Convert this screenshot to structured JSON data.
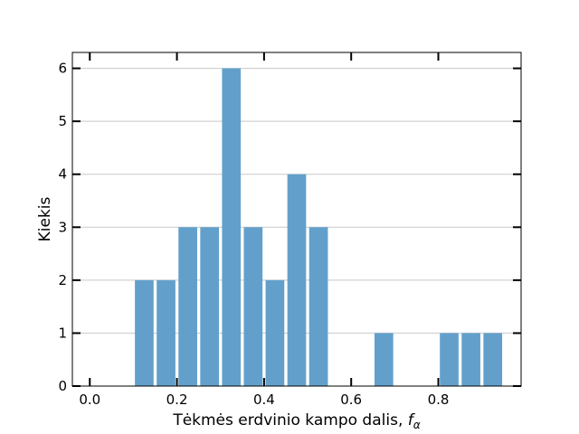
{
  "chart_data": {
    "type": "bar",
    "xlabel": "Tėkmės erdvinio kampo dalis, ",
    "xlabel_symbol": "f",
    "xlabel_subscript": "α",
    "ylabel": "Kiekis",
    "xlim": [
      -0.04,
      0.99
    ],
    "ylim": [
      0,
      6.3
    ],
    "x_ticks": [
      "0.0",
      "0.2",
      "0.4",
      "0.6",
      "0.8"
    ],
    "y_ticks": [
      "0",
      "1",
      "2",
      "3",
      "4",
      "5",
      "6"
    ],
    "grid": "horizontal",
    "bar_color": "#62a0cb",
    "bin_width": 0.05,
    "bins": [
      {
        "x": 0.125,
        "value": 2
      },
      {
        "x": 0.175,
        "value": 2
      },
      {
        "x": 0.225,
        "value": 3
      },
      {
        "x": 0.275,
        "value": 3
      },
      {
        "x": 0.325,
        "value": 6
      },
      {
        "x": 0.375,
        "value": 3
      },
      {
        "x": 0.425,
        "value": 2
      },
      {
        "x": 0.475,
        "value": 4
      },
      {
        "x": 0.525,
        "value": 3
      },
      {
        "x": 0.675,
        "value": 1
      },
      {
        "x": 0.825,
        "value": 1
      },
      {
        "x": 0.875,
        "value": 1
      },
      {
        "x": 0.925,
        "value": 1
      }
    ]
  }
}
